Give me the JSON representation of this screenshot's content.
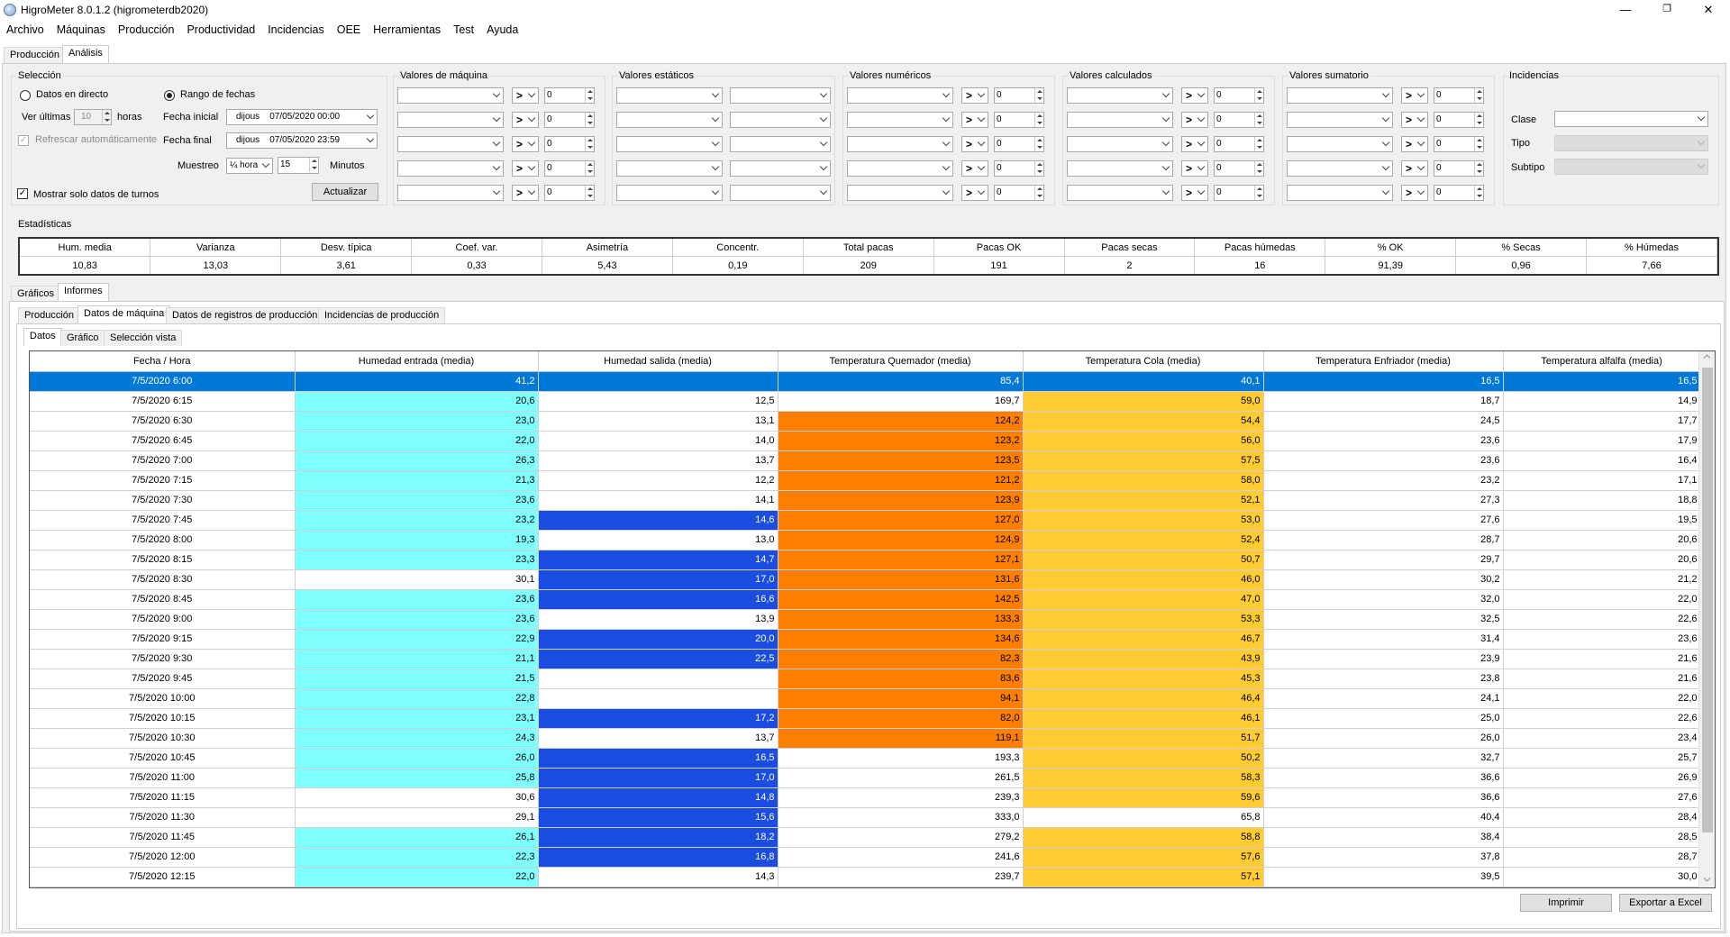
{
  "window": {
    "title": "HigroMeter 8.0.1.2 (higrometerdb2020)",
    "minimize": "—",
    "maximize": "❐",
    "close": "✕"
  },
  "menu": [
    "Archivo",
    "Máquinas",
    "Producción",
    "Productividad",
    "Incidencias",
    "OEE",
    "Herramientas",
    "Test",
    "Ayuda"
  ],
  "top_tabs": [
    "Producción",
    "Análisis"
  ],
  "seleccion": {
    "title": "Selección",
    "datos_directo": "Datos en directo",
    "rango_fechas": "Rango de fechas",
    "ver_ultimas": "Ver últimas",
    "ver_ultimas_value": "10",
    "horas": "horas",
    "refrescar": "Refrescar automáticamente",
    "fecha_inicial": "Fecha inicial",
    "fecha_final": "Fecha final",
    "fecha_inicial_value": "dijous    07/05/2020 00:00",
    "fecha_final_value": "dijous    07/05/2020 23:59",
    "muestreo": "Muestreo",
    "muestreo_value": "¼ hora",
    "minutos_value": "15",
    "minutos": "Minutos",
    "actualizar": "Actualizar",
    "mostrar_turnos": "Mostrar solo datos de turnos"
  },
  "groups": {
    "valores_maquina": "Valores de máquina",
    "valores_estaticos": "Valores estáticos",
    "valores_numericos": "Valores numéricos",
    "valores_calculados": "Valores calculados",
    "valores_sumatorio": "Valores sumatorio",
    "incidencias": "Incidencias",
    "operator": ">",
    "zero": "0",
    "clase": "Clase",
    "tipo": "Tipo",
    "subtipo": "Subtipo"
  },
  "estadisticas": {
    "title": "Estadísticas",
    "headers": [
      "Hum. media",
      "Varianza",
      "Desv. típica",
      "Coef. var.",
      "Asimetría",
      "Concentr.",
      "Total pacas",
      "Pacas OK",
      "Pacas secas",
      "Pacas húmedas",
      "% OK",
      "% Secas",
      "% Húmedas"
    ],
    "values": [
      "10,83",
      "13,03",
      "3,61",
      "0,33",
      "5,43",
      "0,19",
      "209",
      "191",
      "2",
      "16",
      "91,39",
      "0,96",
      "7,66"
    ]
  },
  "section_tabs": [
    "Gráficos",
    "Informes"
  ],
  "report_tabs": [
    "Producción",
    "Datos de máquina",
    "Datos de registros de producción",
    "Incidencias de producción"
  ],
  "sub_tabs": [
    "Datos",
    "Gráfico",
    "Selección vista"
  ],
  "colors": {
    "cyan": "#80ffff",
    "blue": "#1a4de0",
    "orange": "#ff8000",
    "yellow": "#ffcc33",
    "white": "#ffffff",
    "selected": "#0078d7"
  },
  "table": {
    "headers": [
      "Fecha / Hora",
      "Humedad entrada (media)",
      "Humedad salida (media)",
      "Temperatura Quemador (media)",
      "Temperatura Cola (media)",
      "Temperatura Enfriador (media)",
      "Temperatura alfalfa (media)"
    ],
    "rows": [
      {
        "c": [
          "7/5/2020 6:00",
          "41,2",
          "",
          "85,4",
          "40,1",
          "16,5",
          "16,5"
        ],
        "k": [
          "w",
          "w",
          "w",
          "w",
          "w",
          "w",
          "w"
        ]
      },
      {
        "c": [
          "7/5/2020 6:15",
          "20,6",
          "12,5",
          "169,7",
          "59,0",
          "18,7",
          "14,9"
        ],
        "k": [
          "w",
          "c",
          "w",
          "w",
          "y",
          "w",
          "w"
        ]
      },
      {
        "c": [
          "7/5/2020 6:30",
          "23,0",
          "13,1",
          "124,2",
          "54,4",
          "24,5",
          "17,7"
        ],
        "k": [
          "w",
          "c",
          "w",
          "o",
          "y",
          "w",
          "w"
        ]
      },
      {
        "c": [
          "7/5/2020 6:45",
          "22,0",
          "14,0",
          "123,2",
          "56,0",
          "23,6",
          "17,9"
        ],
        "k": [
          "w",
          "c",
          "w",
          "o",
          "y",
          "w",
          "w"
        ]
      },
      {
        "c": [
          "7/5/2020 7:00",
          "26,3",
          "13,7",
          "123,5",
          "57,5",
          "23,6",
          "16,4"
        ],
        "k": [
          "w",
          "c",
          "w",
          "o",
          "y",
          "w",
          "w"
        ]
      },
      {
        "c": [
          "7/5/2020 7:15",
          "21,3",
          "12,2",
          "121,2",
          "58,0",
          "23,2",
          "17,1"
        ],
        "k": [
          "w",
          "c",
          "w",
          "o",
          "y",
          "w",
          "w"
        ]
      },
      {
        "c": [
          "7/5/2020 7:30",
          "23,6",
          "14,1",
          "123,9",
          "52,1",
          "27,3",
          "18,8"
        ],
        "k": [
          "w",
          "c",
          "w",
          "o",
          "y",
          "w",
          "w"
        ]
      },
      {
        "c": [
          "7/5/2020 7:45",
          "23,2",
          "14,6",
          "127,0",
          "53,0",
          "27,6",
          "19,5"
        ],
        "k": [
          "w",
          "c",
          "b",
          "o",
          "y",
          "w",
          "w"
        ]
      },
      {
        "c": [
          "7/5/2020 8:00",
          "19,3",
          "13,0",
          "124,9",
          "52,4",
          "28,7",
          "20,6"
        ],
        "k": [
          "w",
          "c",
          "w",
          "o",
          "y",
          "w",
          "w"
        ]
      },
      {
        "c": [
          "7/5/2020 8:15",
          "23,3",
          "14,7",
          "127,1",
          "50,7",
          "29,7",
          "20,6"
        ],
        "k": [
          "w",
          "c",
          "b",
          "o",
          "y",
          "w",
          "w"
        ]
      },
      {
        "c": [
          "7/5/2020 8:30",
          "30,1",
          "17,0",
          "131,6",
          "46,0",
          "30,2",
          "21,2"
        ],
        "k": [
          "w",
          "w",
          "b",
          "o",
          "y",
          "w",
          "w"
        ]
      },
      {
        "c": [
          "7/5/2020 8:45",
          "23,6",
          "16,6",
          "142,5",
          "47,0",
          "32,0",
          "22,0"
        ],
        "k": [
          "w",
          "c",
          "b",
          "o",
          "y",
          "w",
          "w"
        ]
      },
      {
        "c": [
          "7/5/2020 9:00",
          "23,6",
          "13,9",
          "133,3",
          "53,3",
          "32,5",
          "22,6"
        ],
        "k": [
          "w",
          "c",
          "w",
          "o",
          "y",
          "w",
          "w"
        ]
      },
      {
        "c": [
          "7/5/2020 9:15",
          "22,9",
          "20,0",
          "134,6",
          "46,7",
          "31,4",
          "23,6"
        ],
        "k": [
          "w",
          "c",
          "b",
          "o",
          "y",
          "w",
          "w"
        ]
      },
      {
        "c": [
          "7/5/2020 9:30",
          "21,1",
          "22,5",
          "82,3",
          "43,9",
          "23,9",
          "21,6"
        ],
        "k": [
          "w",
          "c",
          "b",
          "o",
          "y",
          "w",
          "w"
        ]
      },
      {
        "c": [
          "7/5/2020 9:45",
          "21,5",
          "",
          "83,6",
          "45,3",
          "23,8",
          "21,6"
        ],
        "k": [
          "w",
          "c",
          "w",
          "o",
          "y",
          "w",
          "w"
        ]
      },
      {
        "c": [
          "7/5/2020 10:00",
          "22,8",
          "",
          "94,1",
          "46,4",
          "24,1",
          "22,0"
        ],
        "k": [
          "w",
          "c",
          "w",
          "o",
          "y",
          "w",
          "w"
        ]
      },
      {
        "c": [
          "7/5/2020 10:15",
          "23,1",
          "17,2",
          "82,0",
          "46,1",
          "25,0",
          "22,6"
        ],
        "k": [
          "w",
          "c",
          "b",
          "o",
          "y",
          "w",
          "w"
        ]
      },
      {
        "c": [
          "7/5/2020 10:30",
          "24,3",
          "13,7",
          "119,1",
          "51,7",
          "26,0",
          "23,4"
        ],
        "k": [
          "w",
          "c",
          "w",
          "o",
          "y",
          "w",
          "w"
        ]
      },
      {
        "c": [
          "7/5/2020 10:45",
          "26,0",
          "16,5",
          "193,3",
          "50,2",
          "32,7",
          "25,7"
        ],
        "k": [
          "w",
          "c",
          "b",
          "w",
          "y",
          "w",
          "w"
        ]
      },
      {
        "c": [
          "7/5/2020 11:00",
          "25,8",
          "17,0",
          "261,5",
          "58,3",
          "36,6",
          "26,9"
        ],
        "k": [
          "w",
          "c",
          "b",
          "w",
          "y",
          "w",
          "w"
        ]
      },
      {
        "c": [
          "7/5/2020 11:15",
          "30,6",
          "14,8",
          "239,3",
          "59,6",
          "36,6",
          "27,6"
        ],
        "k": [
          "w",
          "w",
          "b",
          "w",
          "y",
          "w",
          "w"
        ]
      },
      {
        "c": [
          "7/5/2020 11:30",
          "29,1",
          "15,6",
          "333,0",
          "65,8",
          "40,4",
          "28,4"
        ],
        "k": [
          "w",
          "w",
          "b",
          "w",
          "w",
          "w",
          "w"
        ]
      },
      {
        "c": [
          "7/5/2020 11:45",
          "26,1",
          "18,2",
          "279,2",
          "58,8",
          "38,4",
          "28,5"
        ],
        "k": [
          "w",
          "c",
          "b",
          "w",
          "y",
          "w",
          "w"
        ]
      },
      {
        "c": [
          "7/5/2020 12:00",
          "22,3",
          "16,8",
          "241,6",
          "57,6",
          "37,8",
          "28,7"
        ],
        "k": [
          "w",
          "c",
          "b",
          "w",
          "y",
          "w",
          "w"
        ]
      },
      {
        "c": [
          "7/5/2020 12:15",
          "22,0",
          "14,3",
          "239,7",
          "57,1",
          "39,5",
          "30,0"
        ],
        "k": [
          "w",
          "c",
          "w",
          "w",
          "y",
          "w",
          "w"
        ]
      }
    ]
  },
  "buttons": {
    "imprimir": "Imprimir",
    "exportar": "Exportar a Excel"
  }
}
